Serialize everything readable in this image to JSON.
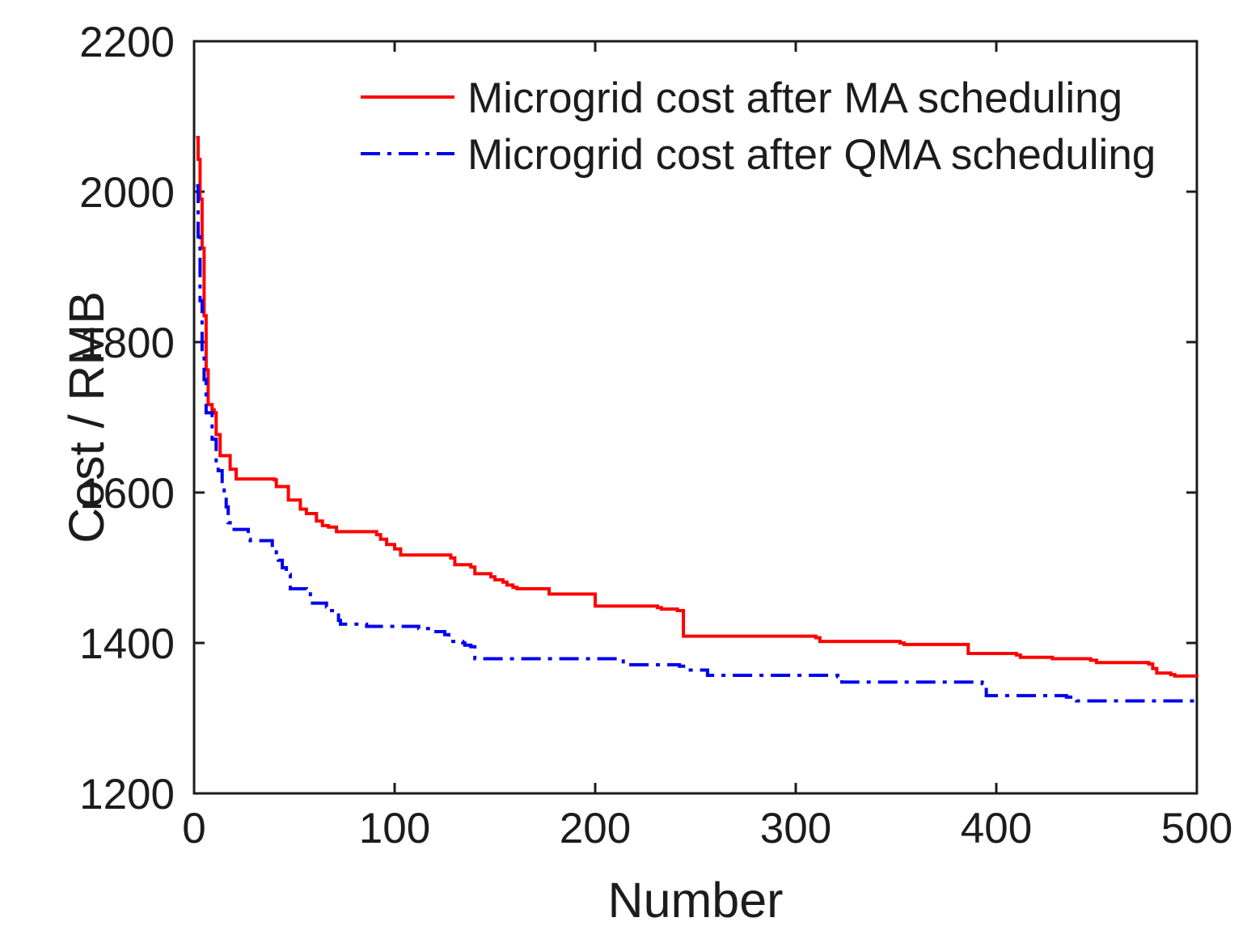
{
  "figure": {
    "background_color": "#ffffff",
    "axis_color": "#1c1c1c",
    "plot_border": "box"
  },
  "chart_data": {
    "type": "line",
    "title": "",
    "xlabel": "Number",
    "ylabel": "Cost / RMB",
    "xlim": [
      0,
      500
    ],
    "ylim": [
      1200,
      2200
    ],
    "x_ticks": [
      0,
      100,
      200,
      300,
      400,
      500
    ],
    "y_ticks": [
      1200,
      1400,
      1600,
      1800,
      2000,
      2200
    ],
    "grid": false,
    "legend_position": "top-inside-no-box",
    "series": [
      {
        "name": "Microgrid cost after MA scheduling",
        "color": "#ff0000",
        "line_style": "solid",
        "line_width": 4,
        "interpolation": "step-after",
        "points": [
          [
            1,
            2072
          ],
          [
            2,
            2043
          ],
          [
            3,
            1990
          ],
          [
            4,
            1925
          ],
          [
            5,
            1835
          ],
          [
            6,
            1763
          ],
          [
            7,
            1717
          ],
          [
            9,
            1710
          ],
          [
            10,
            1706
          ],
          [
            11,
            1677
          ],
          [
            13,
            1649
          ],
          [
            18,
            1631
          ],
          [
            21,
            1618
          ],
          [
            40,
            1617
          ],
          [
            41,
            1608
          ],
          [
            47,
            1590
          ],
          [
            53,
            1578
          ],
          [
            56,
            1572
          ],
          [
            61,
            1562
          ],
          [
            64,
            1556
          ],
          [
            67,
            1554
          ],
          [
            71,
            1548
          ],
          [
            91,
            1544
          ],
          [
            93,
            1538
          ],
          [
            96,
            1531
          ],
          [
            100,
            1525
          ],
          [
            103,
            1517
          ],
          [
            128,
            1513
          ],
          [
            130,
            1504
          ],
          [
            138,
            1501
          ],
          [
            140,
            1492
          ],
          [
            148,
            1488
          ],
          [
            150,
            1484
          ],
          [
            154,
            1481
          ],
          [
            156,
            1477
          ],
          [
            159,
            1474
          ],
          [
            161,
            1472
          ],
          [
            177,
            1465
          ],
          [
            200,
            1449
          ],
          [
            231,
            1447
          ],
          [
            233,
            1445
          ],
          [
            241,
            1443
          ],
          [
            244,
            1409
          ],
          [
            310,
            1407
          ],
          [
            312,
            1402
          ],
          [
            352,
            1400
          ],
          [
            354,
            1398
          ],
          [
            386,
            1386
          ],
          [
            410,
            1384
          ],
          [
            412,
            1381
          ],
          [
            428,
            1379
          ],
          [
            447,
            1377
          ],
          [
            450,
            1374
          ],
          [
            476,
            1372
          ],
          [
            478,
            1366
          ],
          [
            480,
            1360
          ],
          [
            487,
            1358
          ],
          [
            489,
            1356
          ],
          [
            500,
            1355
          ]
        ]
      },
      {
        "name": "Microgrid cost after QMA scheduling",
        "color": "#0000ee",
        "line_style": "dash-dot",
        "line_width": 4,
        "interpolation": "step-after",
        "points": [
          [
            1,
            2008
          ],
          [
            2,
            1940
          ],
          [
            3,
            1855
          ],
          [
            4,
            1790
          ],
          [
            5,
            1750
          ],
          [
            6,
            1706
          ],
          [
            9,
            1671
          ],
          [
            11,
            1639
          ],
          [
            12,
            1629
          ],
          [
            14,
            1610
          ],
          [
            15,
            1599
          ],
          [
            16,
            1581
          ],
          [
            17,
            1560
          ],
          [
            18,
            1551
          ],
          [
            27,
            1538
          ],
          [
            28,
            1536
          ],
          [
            39,
            1527
          ],
          [
            41,
            1513
          ],
          [
            42,
            1510
          ],
          [
            44,
            1500
          ],
          [
            46,
            1491
          ],
          [
            48,
            1472
          ],
          [
            56,
            1468
          ],
          [
            58,
            1453
          ],
          [
            66,
            1448
          ],
          [
            67,
            1443
          ],
          [
            71,
            1441
          ],
          [
            72,
            1430
          ],
          [
            73,
            1425
          ],
          [
            86,
            1422
          ],
          [
            112,
            1419
          ],
          [
            118,
            1415
          ],
          [
            125,
            1411
          ],
          [
            127,
            1405
          ],
          [
            128,
            1402
          ],
          [
            134,
            1400
          ],
          [
            135,
            1397
          ],
          [
            138,
            1395
          ],
          [
            140,
            1379
          ],
          [
            212,
            1376
          ],
          [
            214,
            1371
          ],
          [
            242,
            1369
          ],
          [
            246,
            1364
          ],
          [
            256,
            1357
          ],
          [
            321,
            1355
          ],
          [
            323,
            1348
          ],
          [
            393,
            1346
          ],
          [
            395,
            1330
          ],
          [
            435,
            1328
          ],
          [
            438,
            1324
          ],
          [
            440,
            1323
          ],
          [
            500,
            1323
          ]
        ]
      }
    ]
  },
  "legend": {
    "items": [
      {
        "label": "Microgrid cost after MA scheduling"
      },
      {
        "label": "Microgrid cost after QMA scheduling"
      }
    ]
  }
}
